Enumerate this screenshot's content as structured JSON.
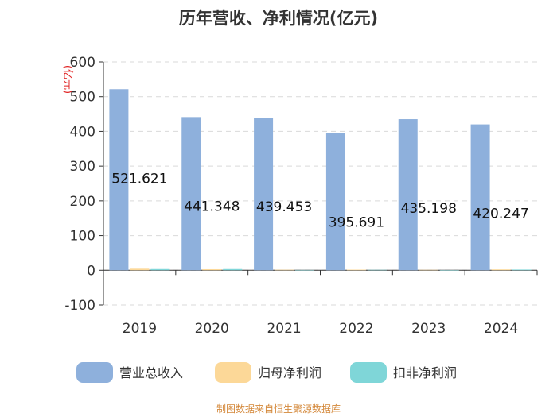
{
  "chart_data": {
    "type": "bar",
    "title": "历年营收、净利情况(亿元)",
    "unit_label": "(亿元)",
    "categories": [
      "2019",
      "2020",
      "2021",
      "2022",
      "2023",
      "2024"
    ],
    "series": [
      {
        "name": "营业总收入",
        "color": "#8eb0dc",
        "values": [
          521.621,
          441.348,
          439.453,
          395.691,
          435.198,
          420.247
        ],
        "labels": [
          "521.621",
          "441.348",
          "439.453",
          "395.691",
          "435.198",
          "420.247"
        ]
      },
      {
        "name": "归母净利润",
        "color": "#fcd898",
        "values": [
          4.5,
          3.0,
          1.5,
          1.8,
          1.2,
          2.5
        ]
      },
      {
        "name": "扣非净利润",
        "color": "#7fd6d8",
        "values": [
          3.5,
          3.5,
          0.8,
          1.2,
          0.6,
          2.0
        ]
      }
    ],
    "ylim": [
      -100,
      600
    ],
    "yticks": [
      "-100",
      "0",
      "100",
      "200",
      "300",
      "400",
      "500",
      "600"
    ],
    "grid": true,
    "legend_position": "bottom"
  },
  "source": "制图数据来自恒生聚源数据库"
}
